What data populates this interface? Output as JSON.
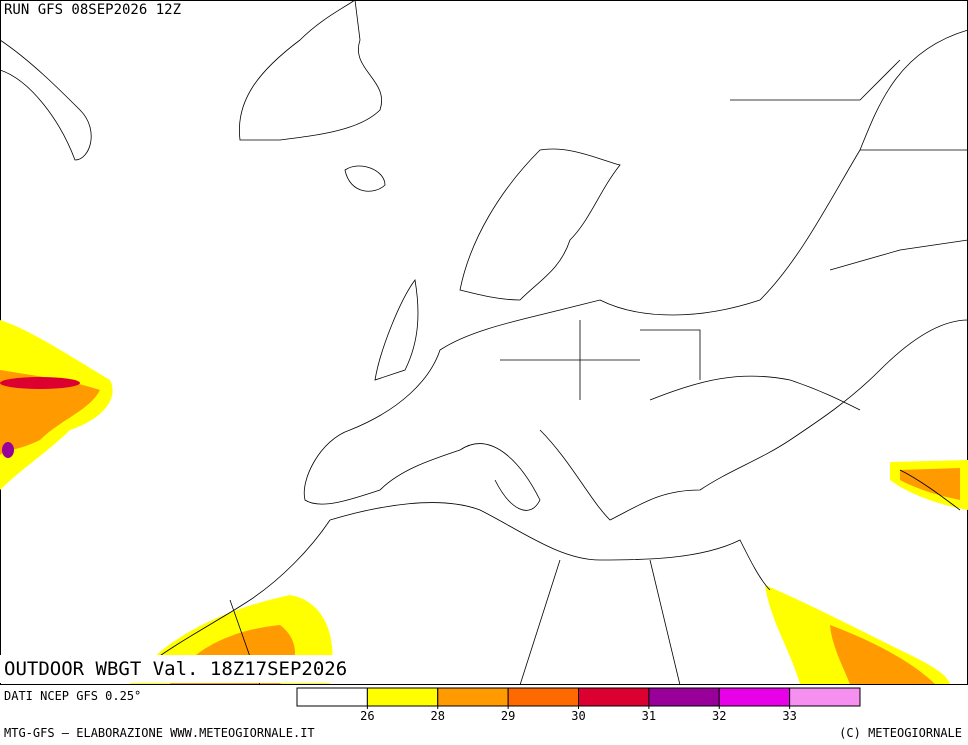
{
  "header": {
    "run": "RUN GFS 08SEP2026 12Z"
  },
  "map": {
    "title": "OUTDOOR WBGT Val. 18Z17SEP2026"
  },
  "legend": {
    "source": "DATI NCEP GFS 0.25°",
    "colors": [
      "#ffffff",
      "#ffff00",
      "#ff9a00",
      "#ff6a00",
      "#dc0030",
      "#990099",
      "#e800e8",
      "#f590f0"
    ],
    "ticks": [
      26,
      28,
      29,
      30,
      31,
      32,
      33
    ]
  },
  "footer": {
    "left": "MTG-GFS – ELABORAZIONE WWW.METEOGIORNALE.IT",
    "right": "(C) METEOGIORNALE"
  }
}
